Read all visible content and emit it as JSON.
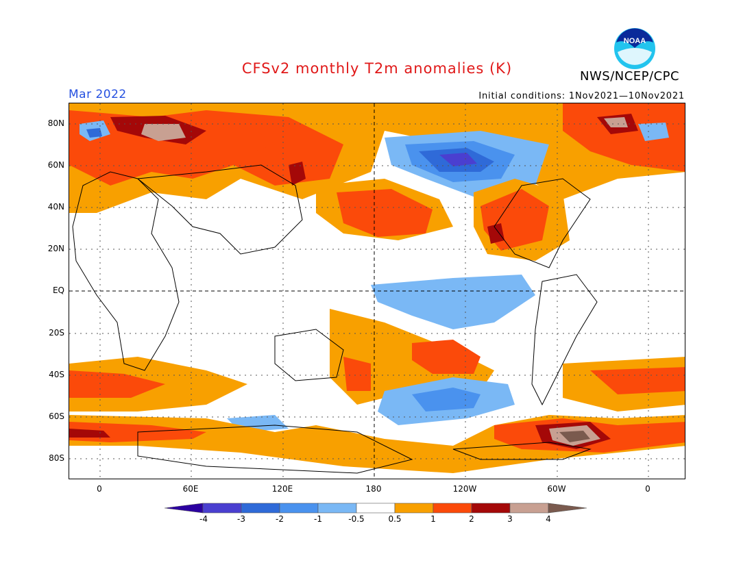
{
  "header": {
    "title": "CFSv2 monthly T2m anomalies (K)",
    "period": "Mar 2022",
    "agency": "NWS/NCEP/CPC",
    "initial_conditions": "Initial conditions: 1Nov2021—10Nov2021",
    "logo_text": "NOAA"
  },
  "axes": {
    "lat_labels": [
      "80N",
      "60N",
      "40N",
      "20N",
      "EQ",
      "20S",
      "40S",
      "60S",
      "80S"
    ],
    "lon_labels": [
      "0",
      "60E",
      "120E",
      "180",
      "120W",
      "60W",
      "0"
    ]
  },
  "colorbar": {
    "labels": [
      "-4",
      "-3",
      "-2",
      "-1",
      "-0.5",
      "0.5",
      "1",
      "2",
      "3",
      "4"
    ],
    "colors": [
      "#2b00a0",
      "#4a3fd0",
      "#2f6ad8",
      "#4a92ee",
      "#7ab8f5",
      "#ffffff",
      "#f8a000",
      "#fb4a0a",
      "#a40808",
      "#c8a092",
      "#7a5a4e"
    ]
  },
  "colors": {
    "title": "#e01818",
    "period": "#2550e0",
    "warm_weak": "#f8a000",
    "warm_mid": "#fb4a0a",
    "warm_strong": "#a40808",
    "warm_extreme": "#c8a092",
    "warm_max": "#7a5a4e",
    "cold_weak": "#7ab8f5",
    "cold_mid": "#4a92ee",
    "cold_strong": "#2f6ad8",
    "cold_max": "#4a3fd0"
  }
}
